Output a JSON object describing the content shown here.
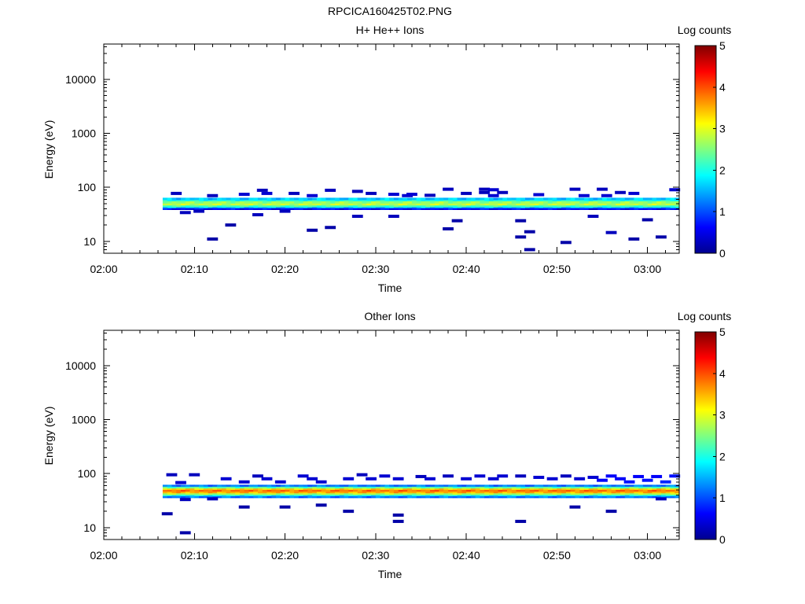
{
  "figure_title": "RPCICA160425T02.PNG",
  "colorscale": {
    "name": "jet",
    "label": "Log counts",
    "ticks": [
      "0",
      "1",
      "2",
      "3",
      "4",
      "5"
    ],
    "range": [
      0,
      5
    ]
  },
  "chart_data": [
    {
      "type": "heatmap",
      "title": "H+ He++ Ions",
      "xlabel": "Time",
      "ylabel": "Energy (eV)",
      "xticks": [
        "02:00",
        "02:10",
        "02:20",
        "02:30",
        "02:40",
        "02:50",
        "03:00"
      ],
      "xlim_minutes": [
        0,
        63.5
      ],
      "yscale": "log",
      "yticks": [
        "10",
        "100",
        "1000",
        "10000"
      ],
      "ylim": [
        6,
        45000
      ],
      "data_start_minutes": 6.5,
      "data_end_minutes": 63.5,
      "band": [
        {
          "e_lo": 58,
          "e_hi": 64,
          "value": 1.6
        },
        {
          "e_lo": 55,
          "e_hi": 58,
          "value": 2.0
        },
        {
          "e_lo": 50,
          "e_hi": 55,
          "value": 2.6
        },
        {
          "e_lo": 46,
          "e_hi": 50,
          "value": 2.8
        },
        {
          "e_lo": 43,
          "e_hi": 46,
          "value": 2.2
        },
        {
          "e_lo": 41,
          "e_hi": 43,
          "value": 1.6
        },
        {
          "e_lo": 38.5,
          "e_hi": 41,
          "value": 0.6
        }
      ],
      "sparse_pixels": [
        {
          "t": 8,
          "e": 77,
          "v": 0.3
        },
        {
          "t": 9,
          "e": 34,
          "v": 0.3
        },
        {
          "t": 10.5,
          "e": 36,
          "v": 0.3
        },
        {
          "t": 12,
          "e": 11,
          "v": 0.2
        },
        {
          "t": 12,
          "e": 70,
          "v": 0.3
        },
        {
          "t": 14,
          "e": 20,
          "v": 0.2
        },
        {
          "t": 15.5,
          "e": 74,
          "v": 0.4
        },
        {
          "t": 17,
          "e": 31,
          "v": 0.3
        },
        {
          "t": 17.5,
          "e": 88,
          "v": 0.3
        },
        {
          "t": 18,
          "e": 77,
          "v": 0.4
        },
        {
          "t": 20,
          "e": 36,
          "v": 0.3
        },
        {
          "t": 21,
          "e": 77,
          "v": 0.3
        },
        {
          "t": 23,
          "e": 16,
          "v": 0.2
        },
        {
          "t": 23,
          "e": 70,
          "v": 0.4
        },
        {
          "t": 25,
          "e": 18,
          "v": 0.2
        },
        {
          "t": 25,
          "e": 88,
          "v": 0.3
        },
        {
          "t": 28,
          "e": 29,
          "v": 0.3
        },
        {
          "t": 28,
          "e": 84,
          "v": 0.3
        },
        {
          "t": 29.5,
          "e": 77,
          "v": 0.3
        },
        {
          "t": 32,
          "e": 29,
          "v": 0.3
        },
        {
          "t": 32,
          "e": 74,
          "v": 0.4
        },
        {
          "t": 33.5,
          "e": 70,
          "v": 0.4
        },
        {
          "t": 34,
          "e": 74,
          "v": 0.4
        },
        {
          "t": 36,
          "e": 71,
          "v": 0.3
        },
        {
          "t": 38,
          "e": 17,
          "v": 0.2
        },
        {
          "t": 38,
          "e": 92,
          "v": 0.3
        },
        {
          "t": 39,
          "e": 24,
          "v": 0.2
        },
        {
          "t": 40,
          "e": 77,
          "v": 0.3
        },
        {
          "t": 42,
          "e": 80,
          "v": 0.3
        },
        {
          "t": 42,
          "e": 92,
          "v": 0.3
        },
        {
          "t": 43,
          "e": 70,
          "v": 0.4
        },
        {
          "t": 43,
          "e": 90,
          "v": 0.4
        },
        {
          "t": 44,
          "e": 80,
          "v": 0.3
        },
        {
          "t": 46,
          "e": 12,
          "v": 0.2
        },
        {
          "t": 46,
          "e": 24,
          "v": 0.2
        },
        {
          "t": 47,
          "e": 7,
          "v": 0.2
        },
        {
          "t": 47,
          "e": 15,
          "v": 0.2
        },
        {
          "t": 48,
          "e": 73,
          "v": 0.4
        },
        {
          "t": 51,
          "e": 9.5,
          "v": 0.2
        },
        {
          "t": 52,
          "e": 92,
          "v": 0.3
        },
        {
          "t": 53,
          "e": 70,
          "v": 0.4
        },
        {
          "t": 54,
          "e": 29,
          "v": 0.3
        },
        {
          "t": 55,
          "e": 92,
          "v": 0.3
        },
        {
          "t": 55.5,
          "e": 70,
          "v": 0.4
        },
        {
          "t": 56,
          "e": 14.5,
          "v": 0.3
        },
        {
          "t": 57,
          "e": 80,
          "v": 0.3
        },
        {
          "t": 58.5,
          "e": 11,
          "v": 0.2
        },
        {
          "t": 58.5,
          "e": 77,
          "v": 0.4
        },
        {
          "t": 60,
          "e": 25,
          "v": 0.2
        },
        {
          "t": 61.5,
          "e": 12,
          "v": 0.2
        },
        {
          "t": 63,
          "e": 90,
          "v": 0.4
        }
      ]
    },
    {
      "type": "heatmap",
      "title": "Other Ions",
      "xlabel": "Time",
      "ylabel": "Energy (eV)",
      "xticks": [
        "02:00",
        "02:10",
        "02:20",
        "02:30",
        "02:40",
        "02:50",
        "03:00"
      ],
      "xlim_minutes": [
        0,
        63.5
      ],
      "yscale": "log",
      "yticks": [
        "10",
        "100",
        "1000",
        "10000"
      ],
      "ylim": [
        6,
        45000
      ],
      "data_start_minutes": 6.5,
      "data_end_minutes": 63.5,
      "band": [
        {
          "e_lo": 57,
          "e_hi": 62,
          "value": 1.2
        },
        {
          "e_lo": 53,
          "e_hi": 57,
          "value": 2.3
        },
        {
          "e_lo": 50,
          "e_hi": 53,
          "value": 3.3
        },
        {
          "e_lo": 46,
          "e_hi": 50,
          "value": 3.8
        },
        {
          "e_lo": 43,
          "e_hi": 46,
          "value": 3.5
        },
        {
          "e_lo": 40,
          "e_hi": 43,
          "value": 2.7
        },
        {
          "e_lo": 38,
          "e_hi": 40,
          "value": 1.8
        },
        {
          "e_lo": 35.5,
          "e_hi": 38,
          "value": 1.2
        }
      ],
      "sparse_pixels": [
        {
          "t": 7,
          "e": 18,
          "v": 0.2
        },
        {
          "t": 7.5,
          "e": 95,
          "v": 0.3
        },
        {
          "t": 8.5,
          "e": 68,
          "v": 0.4
        },
        {
          "t": 9,
          "e": 8,
          "v": 0.2
        },
        {
          "t": 9,
          "e": 33,
          "v": 0.3
        },
        {
          "t": 10,
          "e": 95,
          "v": 0.3
        },
        {
          "t": 12,
          "e": 34,
          "v": 0.3
        },
        {
          "t": 13.5,
          "e": 80,
          "v": 0.4
        },
        {
          "t": 15.5,
          "e": 24,
          "v": 0.2
        },
        {
          "t": 15.5,
          "e": 70,
          "v": 0.4
        },
        {
          "t": 17,
          "e": 90,
          "v": 0.3
        },
        {
          "t": 18,
          "e": 80,
          "v": 0.4
        },
        {
          "t": 19.5,
          "e": 70,
          "v": 0.4
        },
        {
          "t": 20,
          "e": 24,
          "v": 0.2
        },
        {
          "t": 22,
          "e": 90,
          "v": 0.4
        },
        {
          "t": 23,
          "e": 80,
          "v": 0.4
        },
        {
          "t": 24,
          "e": 26,
          "v": 0.2
        },
        {
          "t": 24,
          "e": 70,
          "v": 0.4
        },
        {
          "t": 27,
          "e": 20,
          "v": 0.2
        },
        {
          "t": 27,
          "e": 80,
          "v": 0.4
        },
        {
          "t": 28.5,
          "e": 95,
          "v": 0.3
        },
        {
          "t": 29.5,
          "e": 80,
          "v": 0.4
        },
        {
          "t": 31,
          "e": 90,
          "v": 0.4
        },
        {
          "t": 32.5,
          "e": 13,
          "v": 0.2
        },
        {
          "t": 32.5,
          "e": 17,
          "v": 0.2
        },
        {
          "t": 32.5,
          "e": 80,
          "v": 0.4
        },
        {
          "t": 35,
          "e": 88,
          "v": 0.3
        },
        {
          "t": 36,
          "e": 80,
          "v": 0.4
        },
        {
          "t": 38,
          "e": 90,
          "v": 0.3
        },
        {
          "t": 40,
          "e": 80,
          "v": 0.4
        },
        {
          "t": 41.5,
          "e": 90,
          "v": 0.4
        },
        {
          "t": 43,
          "e": 80,
          "v": 0.4
        },
        {
          "t": 44,
          "e": 90,
          "v": 0.4
        },
        {
          "t": 46,
          "e": 13,
          "v": 0.2
        },
        {
          "t": 46,
          "e": 90,
          "v": 0.3
        },
        {
          "t": 48,
          "e": 85,
          "v": 0.4
        },
        {
          "t": 49.5,
          "e": 80,
          "v": 0.4
        },
        {
          "t": 51,
          "e": 90,
          "v": 0.3
        },
        {
          "t": 52,
          "e": 24,
          "v": 0.2
        },
        {
          "t": 52.5,
          "e": 80,
          "v": 0.4
        },
        {
          "t": 54,
          "e": 85,
          "v": 0.4
        },
        {
          "t": 55,
          "e": 75,
          "v": 0.6
        },
        {
          "t": 56,
          "e": 20,
          "v": 0.2
        },
        {
          "t": 56,
          "e": 90,
          "v": 0.6
        },
        {
          "t": 57,
          "e": 80,
          "v": 0.6
        },
        {
          "t": 58,
          "e": 70,
          "v": 0.7
        },
        {
          "t": 59,
          "e": 88,
          "v": 0.6
        },
        {
          "t": 60,
          "e": 75,
          "v": 0.7
        },
        {
          "t": 61,
          "e": 88,
          "v": 0.6
        },
        {
          "t": 61.5,
          "e": 34,
          "v": 0.3
        },
        {
          "t": 62,
          "e": 70,
          "v": 0.8
        },
        {
          "t": 63,
          "e": 90,
          "v": 0.7
        }
      ]
    }
  ]
}
